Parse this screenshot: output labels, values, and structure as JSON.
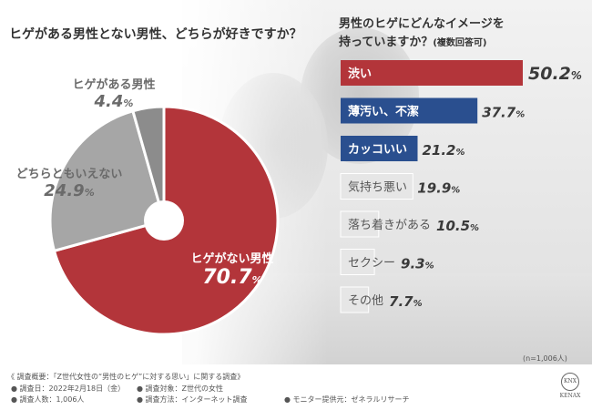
{
  "left_chart": {
    "title": "ヒゲがある男性とない男性、どちらが好きですか？"
  },
  "right_chart": {
    "title_line1": "男性のヒゲにどんなイメージを",
    "title_line2": "持っていますか？",
    "title_sub": "(複数回答可)"
  },
  "colors": {
    "red": "#b3353a",
    "blue": "#2a4f8f",
    "gray": "#a6a6a6",
    "gray_dark": "#8c8c8c",
    "light_bar": "#e6e6e6"
  },
  "chart_data": [
    {
      "type": "pie",
      "title": "ヒゲがある男性とない男性、どちらが好きですか？",
      "unit": "%",
      "slices": [
        {
          "label": "ヒゲがない男性",
          "value": 70.7
        },
        {
          "label": "どちらともいえない",
          "value": 24.9
        },
        {
          "label": "ヒゲがある男性",
          "value": 4.4
        }
      ]
    },
    {
      "type": "bar",
      "orientation": "horizontal",
      "title": "男性のヒゲにどんなイメージを持っていますか？",
      "subtitle": "(複数回答可)",
      "unit": "%",
      "categories": [
        "渋い",
        "薄汚い、不潔",
        "カッコいい",
        "気持ち悪い",
        "落ち着きがある",
        "セクシー",
        "その他"
      ],
      "values": [
        50.2,
        37.7,
        21.2,
        19.9,
        10.5,
        9.3,
        7.7
      ],
      "value_labels": [
        {
          "main": "50.2",
          "unit": "%"
        },
        {
          "main": "37.7",
          "unit": "%"
        },
        {
          "main": "21.2",
          "unit": "%"
        },
        {
          "main": "19.9",
          "unit": "%"
        },
        {
          "main": "10.5",
          "unit": "%"
        },
        {
          "main": "9.3",
          "unit": "%"
        },
        {
          "main": "7.7",
          "unit": "%"
        }
      ],
      "bar_styles": [
        "red",
        "blue",
        "blue",
        "light",
        "light",
        "light",
        "light"
      ]
    }
  ],
  "footer": {
    "n_label": "(n=1,006人)",
    "survey_title": "《 調査概要：「Z世代女性の“男性のヒゲ”に対する思い」に関する調査》",
    "date": "● 調査日：2022年2月18日（金）",
    "target": "● 調査対象：Z世代の女性",
    "count": "● 調査人数：1,006人",
    "method": "● 調査方法：インターネット調査",
    "monitor": "● モニター提供元：ゼネラルリサーチ",
    "logo_mark": "KNX",
    "logo_word": "KENAX"
  }
}
